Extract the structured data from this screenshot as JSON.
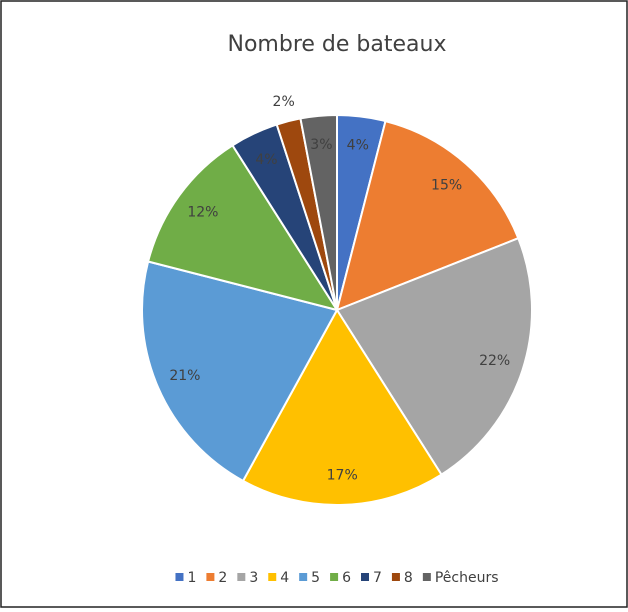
{
  "chart_data": {
    "type": "pie",
    "title": "Nombre de bateaux",
    "categories": [
      "1",
      "2",
      "3",
      "4",
      "5",
      "6",
      "7",
      "8",
      "Pêcheurs"
    ],
    "values": [
      4,
      15,
      22,
      17,
      21,
      12,
      4,
      2,
      3
    ],
    "value_labels": [
      "4%",
      "15%",
      "22%",
      "17%",
      "21%",
      "12%",
      "4%",
      "2%",
      "3%"
    ],
    "colors": [
      "#4472c4",
      "#ed7d31",
      "#a5a5a5",
      "#ffc000",
      "#5b9bd5",
      "#70ad47",
      "#264478",
      "#9e480e",
      "#636363"
    ],
    "legend": "bottom"
  }
}
